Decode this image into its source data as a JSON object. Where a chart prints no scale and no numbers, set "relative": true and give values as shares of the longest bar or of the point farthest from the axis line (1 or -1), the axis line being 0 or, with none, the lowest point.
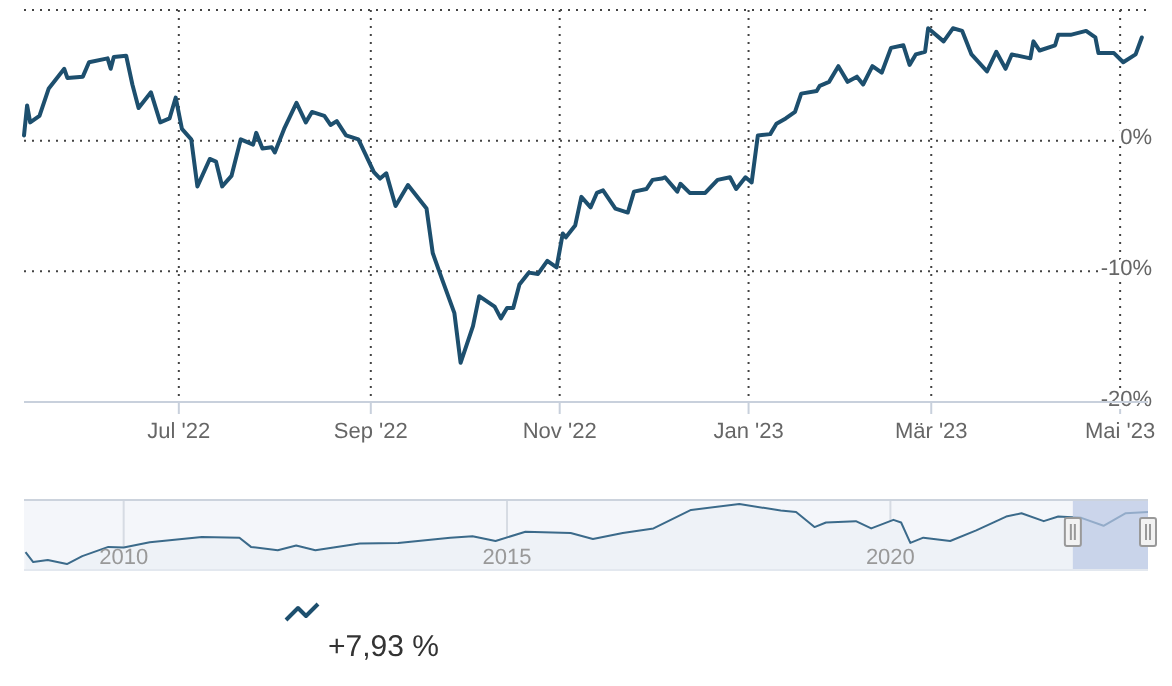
{
  "chart_data": [
    {
      "type": "line",
      "color": "#1d4f6e",
      "grid": true,
      "annotations": [
        "+7,93 %"
      ],
      "xlim": [
        "2022-05-12",
        "2023-05-10"
      ],
      "xticks": [
        {
          "value": "2022-07-01",
          "label": "Jul '22"
        },
        {
          "value": "2022-09-01",
          "label": "Sep '22"
        },
        {
          "value": "2022-11-01",
          "label": "Nov '22"
        },
        {
          "value": "2023-01-01",
          "label": "Jan '23"
        },
        {
          "value": "2023-03-01",
          "label": "Mär '23"
        },
        {
          "value": "2023-05-01",
          "label": "Mai '23"
        }
      ],
      "ylim": [
        -20,
        10
      ],
      "yticks": [
        {
          "value": -20,
          "label": "-20%"
        },
        {
          "value": -10,
          "label": "-10%"
        },
        {
          "value": 0,
          "label": "0%"
        },
        {
          "value": 10,
          "label": null
        }
      ],
      "x": [
        "2022-05-12",
        "2022-05-13",
        "2022-05-14",
        "2022-05-17",
        "2022-05-20",
        "2022-05-25",
        "2022-05-26",
        "2022-05-31",
        "2022-06-02",
        "2022-06-08",
        "2022-06-09",
        "2022-06-10",
        "2022-06-14",
        "2022-06-16",
        "2022-06-18",
        "2022-06-22",
        "2022-06-25",
        "2022-06-28",
        "2022-06-30",
        "2022-07-02",
        "2022-07-05",
        "2022-07-07",
        "2022-07-11",
        "2022-07-13",
        "2022-07-15",
        "2022-07-18",
        "2022-07-21",
        "2022-07-25",
        "2022-07-26",
        "2022-07-28",
        "2022-07-31",
        "2022-08-01",
        "2022-08-04",
        "2022-08-08",
        "2022-08-11",
        "2022-08-13",
        "2022-08-17",
        "2022-08-19",
        "2022-08-21",
        "2022-08-24",
        "2022-08-28",
        "2022-09-02",
        "2022-09-04",
        "2022-09-06",
        "2022-09-09",
        "2022-09-13",
        "2022-09-19",
        "2022-09-21",
        "2022-09-24",
        "2022-09-28",
        "2022-09-30",
        "2022-10-04",
        "2022-10-06",
        "2022-10-11",
        "2022-10-13",
        "2022-10-15",
        "2022-10-17",
        "2022-10-19",
        "2022-10-22",
        "2022-10-25",
        "2022-10-28",
        "2022-10-31",
        "2022-11-02",
        "2022-11-03",
        "2022-11-06",
        "2022-11-08",
        "2022-11-11",
        "2022-11-13",
        "2022-11-15",
        "2022-11-19",
        "2022-11-23",
        "2022-11-25",
        "2022-11-29",
        "2022-12-01",
        "2022-12-04",
        "2022-12-05",
        "2022-12-09",
        "2022-12-10",
        "2022-12-13",
        "2022-12-18",
        "2022-12-22",
        "2022-12-26",
        "2022-12-28",
        "2022-12-31",
        "2023-01-02",
        "2023-01-04",
        "2023-01-08",
        "2023-01-10",
        "2023-01-13",
        "2023-01-16",
        "2023-01-18",
        "2023-01-23",
        "2023-01-24",
        "2023-01-27",
        "2023-01-30",
        "2023-02-02",
        "2023-02-05",
        "2023-02-07",
        "2023-02-10",
        "2023-02-13",
        "2023-02-16",
        "2023-02-20",
        "2023-02-22",
        "2023-02-24",
        "2023-02-27",
        "2023-02-28",
        "2023-03-05",
        "2023-03-08",
        "2023-03-11",
        "2023-03-14",
        "2023-03-19",
        "2023-03-22",
        "2023-03-25",
        "2023-03-27",
        "2023-04-02",
        "2023-04-03",
        "2023-04-05",
        "2023-04-10",
        "2023-04-11",
        "2023-04-15",
        "2023-04-20",
        "2023-04-23",
        "2023-04-24",
        "2023-04-29",
        "2023-05-02",
        "2023-05-06",
        "2023-05-08"
      ],
      "values": [
        0.4,
        2.7,
        1.4,
        1.9,
        4.0,
        5.5,
        4.8,
        4.9,
        6.0,
        6.3,
        5.5,
        6.4,
        6.5,
        4.3,
        2.5,
        3.7,
        1.4,
        1.7,
        3.3,
        0.9,
        0.1,
        -3.5,
        -1.4,
        -1.6,
        -3.5,
        -2.7,
        0.1,
        -0.3,
        0.6,
        -0.6,
        -0.5,
        -0.9,
        0.9,
        2.9,
        1.4,
        2.2,
        1.9,
        1.2,
        1.5,
        0.4,
        0.1,
        -2.4,
        -2.9,
        -2.5,
        -5.0,
        -3.4,
        -5.2,
        -8.6,
        -10.6,
        -13.2,
        -17.0,
        -14.2,
        -11.9,
        -12.7,
        -13.6,
        -12.8,
        -12.8,
        -11.0,
        -10.1,
        -10.2,
        -9.2,
        -9.7,
        -7.1,
        -7.4,
        -6.5,
        -4.3,
        -5.1,
        -4.0,
        -3.8,
        -5.2,
        -5.5,
        -3.9,
        -3.7,
        -3.0,
        -2.9,
        -2.8,
        -3.9,
        -3.3,
        -4.0,
        -4.0,
        -3.0,
        -2.8,
        -3.7,
        -2.8,
        -3.2,
        0.4,
        0.5,
        1.3,
        1.7,
        2.2,
        3.6,
        3.8,
        4.2,
        4.5,
        5.7,
        4.5,
        4.9,
        4.3,
        5.7,
        5.2,
        7.1,
        7.3,
        5.8,
        6.6,
        6.8,
        8.6,
        7.6,
        8.6,
        8.4,
        6.6,
        5.3,
        6.8,
        5.5,
        6.6,
        6.3,
        7.6,
        6.9,
        7.3,
        8.1,
        8.1,
        8.4,
        7.9,
        6.7,
        6.7,
        6.0,
        6.6,
        7.9
      ]
    },
    {
      "type": "area",
      "relative": true,
      "color": "#3b6a8a",
      "grid": "x",
      "xlim": [
        2008.7,
        2023.36
      ],
      "xticks": [
        2010,
        2015,
        2020
      ],
      "bands": [
        {
          "axis": "x",
          "from": 2022.38,
          "to": 2023.36,
          "color": "#b9c7e4"
        }
      ],
      "x": [
        2008.72,
        2008.82,
        2009.01,
        2009.26,
        2009.46,
        2009.8,
        2010.0,
        2010.34,
        2011.02,
        2011.51,
        2011.66,
        2012.01,
        2012.25,
        2012.5,
        2013.08,
        2013.58,
        2014.26,
        2014.55,
        2014.85,
        2015.24,
        2015.83,
        2016.12,
        2016.51,
        2016.91,
        2017.4,
        2018.03,
        2018.57,
        2018.77,
        2019.01,
        2019.16,
        2019.55,
        2019.75,
        2020.04,
        2020.14,
        2020.26,
        2020.43,
        2020.78,
        2021.12,
        2021.51,
        2021.71,
        2022.0,
        2022.19,
        2022.49,
        2022.78,
        2023.07,
        2023.36
      ],
      "values": [
        0.27,
        0.12,
        0.15,
        0.09,
        0.21,
        0.35,
        0.34,
        0.42,
        0.5,
        0.49,
        0.35,
        0.3,
        0.37,
        0.3,
        0.4,
        0.41,
        0.49,
        0.51,
        0.44,
        0.58,
        0.56,
        0.47,
        0.56,
        0.63,
        0.91,
        1,
        0.9,
        0.88,
        0.65,
        0.72,
        0.74,
        0.63,
        0.76,
        0.72,
        0.41,
        0.49,
        0.44,
        0.6,
        0.81,
        0.86,
        0.74,
        0.81,
        0.79,
        0.67,
        0.86,
        0.88
      ]
    }
  ]
}
